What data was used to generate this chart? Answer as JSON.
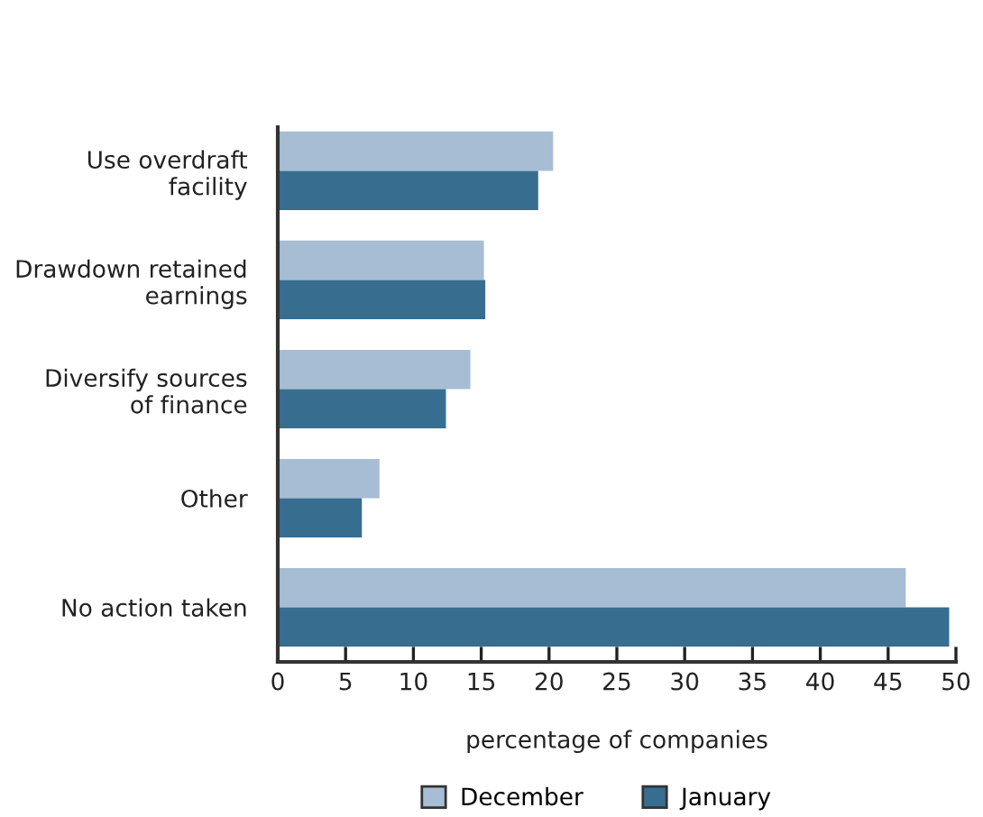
{
  "chart_data": {
    "type": "bar",
    "orientation": "horizontal",
    "xlabel": "percentage of companies",
    "categories": [
      "Use overdraft\nfacility",
      "Drawdown retained\nearnings",
      "Diversify sources\nof finance",
      "Other",
      "No action taken"
    ],
    "series": [
      {
        "name": "December",
        "color": "#a7bdd3",
        "values": [
          20.3,
          15.2,
          14.2,
          7.5,
          46.3
        ]
      },
      {
        "name": "January",
        "color": "#376e90",
        "values": [
          19.2,
          15.3,
          12.4,
          6.2,
          49.5
        ]
      }
    ],
    "xlim": [
      0,
      50
    ],
    "xticks": [
      0,
      5,
      10,
      15,
      20,
      25,
      30,
      35,
      40,
      45,
      50
    ],
    "legend": "bottom",
    "grid": false
  }
}
